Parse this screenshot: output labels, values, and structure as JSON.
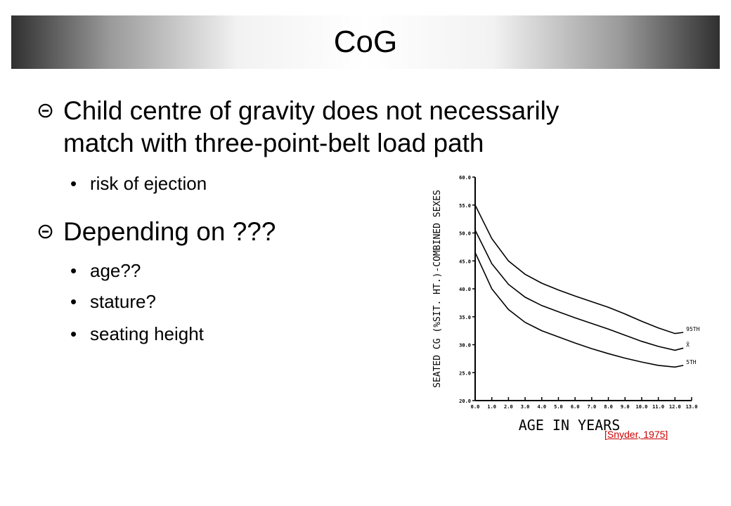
{
  "slide": {
    "title": "CoG",
    "bullets": [
      {
        "text": "Child centre of gravity does not necessarily match with three-point-belt load path",
        "line1": "Child centre of gravity does not necessarily",
        "line2": "match with three-point-belt load path",
        "sub": [
          "risk of ejection"
        ]
      },
      {
        "text": "Depending on ???",
        "sub": [
          "age??",
          "stature?",
          "seating height"
        ]
      }
    ],
    "bullet_symbol": "⊝",
    "sub_bullet_symbol": "•",
    "citation": {
      "open": "[",
      "link": "Snyder, 1975",
      "close": "]"
    }
  },
  "chart_data": {
    "type": "line",
    "xlabel": "AGE IN YEARS",
    "ylabel": "SEATED CG (%SIT. HT.)-COMBINED SEXES",
    "xlim": [
      0,
      13
    ],
    "ylim": [
      20,
      60
    ],
    "x_ticks": [
      "0.0",
      "1.0",
      "2.0",
      "3.0",
      "4.0",
      "5.0",
      "6.0",
      "7.0",
      "8.0",
      "9.0",
      "10.0",
      "11.0",
      "12.0",
      "13.0"
    ],
    "y_ticks": [
      "20.0",
      "25.0",
      "30.0",
      "35.0",
      "40.0",
      "45.0",
      "50.0",
      "55.0",
      "60.0"
    ],
    "x": [
      0,
      1,
      2,
      3,
      4,
      5,
      6,
      7,
      8,
      9,
      10,
      11,
      12,
      12.5
    ],
    "series": [
      {
        "name": "95TH",
        "values": [
          55.0,
          49.0,
          45.0,
          42.6,
          41.0,
          39.8,
          38.7,
          37.7,
          36.7,
          35.5,
          34.2,
          33.0,
          32.0,
          32.2
        ]
      },
      {
        "name": "X̄",
        "values": [
          50.5,
          44.5,
          40.8,
          38.5,
          37.0,
          35.9,
          34.8,
          33.8,
          32.8,
          31.7,
          30.6,
          29.7,
          29.0,
          29.4
        ]
      },
      {
        "name": "5TH",
        "values": [
          46.5,
          40.0,
          36.3,
          34.0,
          32.5,
          31.4,
          30.3,
          29.3,
          28.4,
          27.6,
          26.9,
          26.3,
          26.0,
          26.3
        ]
      }
    ],
    "grid": false
  }
}
